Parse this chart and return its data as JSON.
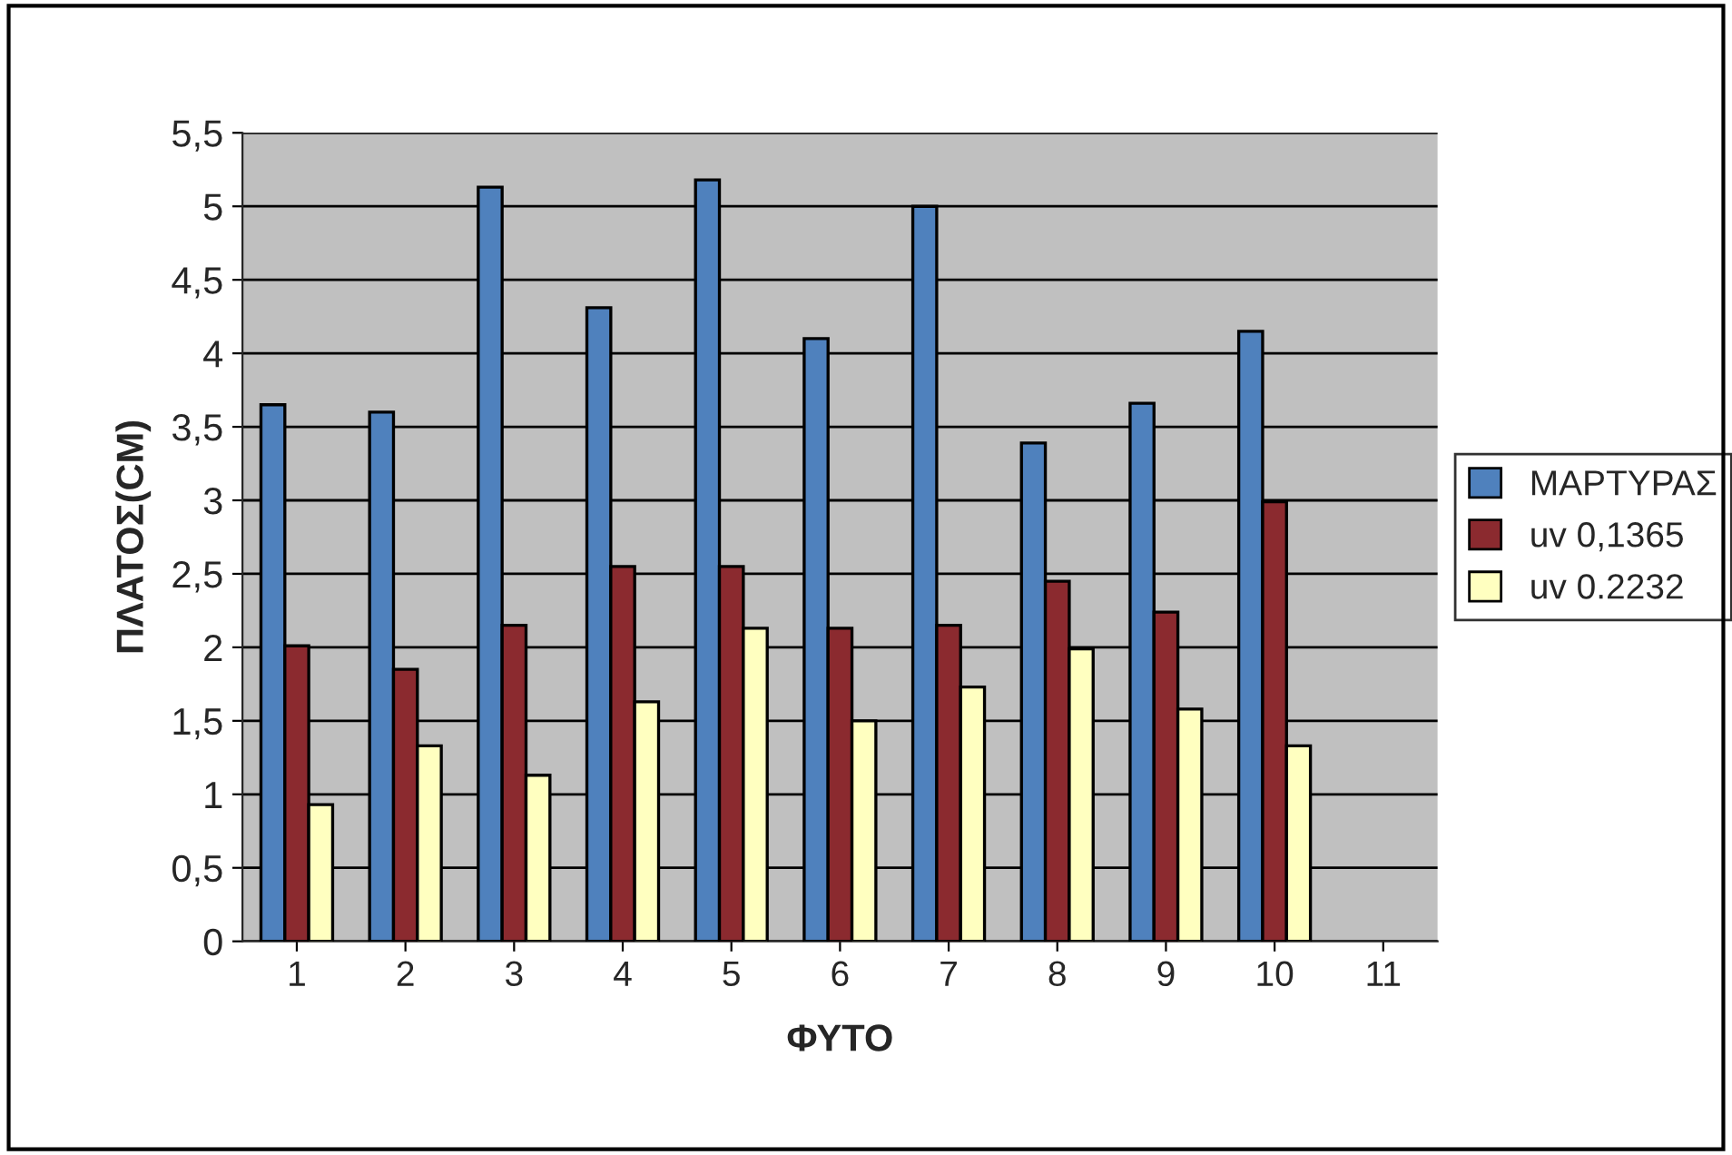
{
  "chart_data": {
    "type": "bar",
    "xlabel": "ΦΥΤΟ",
    "ylabel": "ΠΛΑΤΟΣ(CM)",
    "categories": [
      "1",
      "2",
      "3",
      "4",
      "5",
      "6",
      "7",
      "8",
      "9",
      "10",
      "11"
    ],
    "series": [
      {
        "name": "ΜΑΡΤΥΡΑΣ",
        "color": "#4f81bd",
        "values": [
          3.65,
          3.6,
          5.13,
          4.31,
          5.18,
          4.1,
          5.0,
          3.39,
          3.66,
          4.15,
          null
        ]
      },
      {
        "name": "uv 0,1365",
        "color": "#8b2a2f",
        "values": [
          2.01,
          1.85,
          2.15,
          2.55,
          2.55,
          2.13,
          2.15,
          2.45,
          2.24,
          2.99,
          null
        ]
      },
      {
        "name": "uv 0.2232",
        "color": "#ffffc0",
        "values": [
          0.93,
          1.33,
          1.13,
          1.63,
          2.13,
          1.5,
          1.73,
          1.99,
          1.58,
          1.33,
          null
        ]
      }
    ],
    "ylim": [
      0,
      5.5
    ],
    "yticks": [
      {
        "value": 0,
        "label": "0"
      },
      {
        "value": 0.5,
        "label": "0,5"
      },
      {
        "value": 1,
        "label": "1"
      },
      {
        "value": 1.5,
        "label": "1,5"
      },
      {
        "value": 2,
        "label": "2"
      },
      {
        "value": 2.5,
        "label": "2,5"
      },
      {
        "value": 3,
        "label": "3"
      },
      {
        "value": 3.5,
        "label": "3,5"
      },
      {
        "value": 4,
        "label": "4"
      },
      {
        "value": 4.5,
        "label": "4,5"
      },
      {
        "value": 5,
        "label": "5"
      },
      {
        "value": 5.5,
        "label": "5,5"
      }
    ],
    "grid": "y",
    "legend": "right"
  }
}
